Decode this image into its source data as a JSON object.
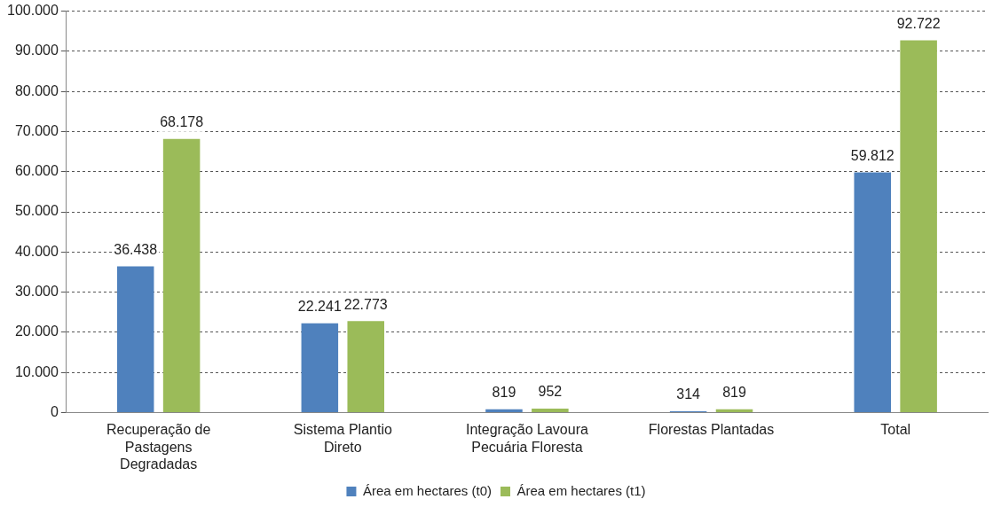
{
  "chart_data": {
    "type": "bar",
    "categories": [
      "Recuperação de Pastagens Degradadas",
      "Sistema Plantio Direto",
      "Integração Lavoura Pecuária Floresta",
      "Florestas Plantadas",
      "Total"
    ],
    "series": [
      {
        "name": "Área em hectares (t0)",
        "color": "#4f81bd",
        "values": [
          36438,
          22241,
          819,
          314,
          59812
        ],
        "value_labels": [
          "36.438",
          "22.241",
          "819",
          "314",
          "59.812"
        ]
      },
      {
        "name": "Área em hectares (t1)",
        "color": "#9bbb59",
        "values": [
          68178,
          22773,
          952,
          819,
          92722
        ],
        "value_labels": [
          "68.178",
          "22.773",
          "952",
          "819",
          "92.722"
        ]
      }
    ],
    "ylim": [
      0,
      100000
    ],
    "yticks": [
      0,
      {
        "value": 10000,
        "label": "10.000"
      },
      {
        "value": 20000,
        "label": "20.000"
      },
      {
        "value": 30000,
        "label": "30.000"
      },
      {
        "value": 40000,
        "label": "40.000"
      },
      {
        "value": 50000,
        "label": "50.000"
      },
      {
        "value": 60000,
        "label": "60.000"
      },
      {
        "value": 70000,
        "label": "70.000"
      },
      {
        "value": 80000,
        "label": "80.000"
      },
      {
        "value": 90000,
        "label": "90.000"
      },
      {
        "value": 100000,
        "label": "100.000"
      }
    ],
    "grid": "y",
    "legend": "bottom"
  }
}
